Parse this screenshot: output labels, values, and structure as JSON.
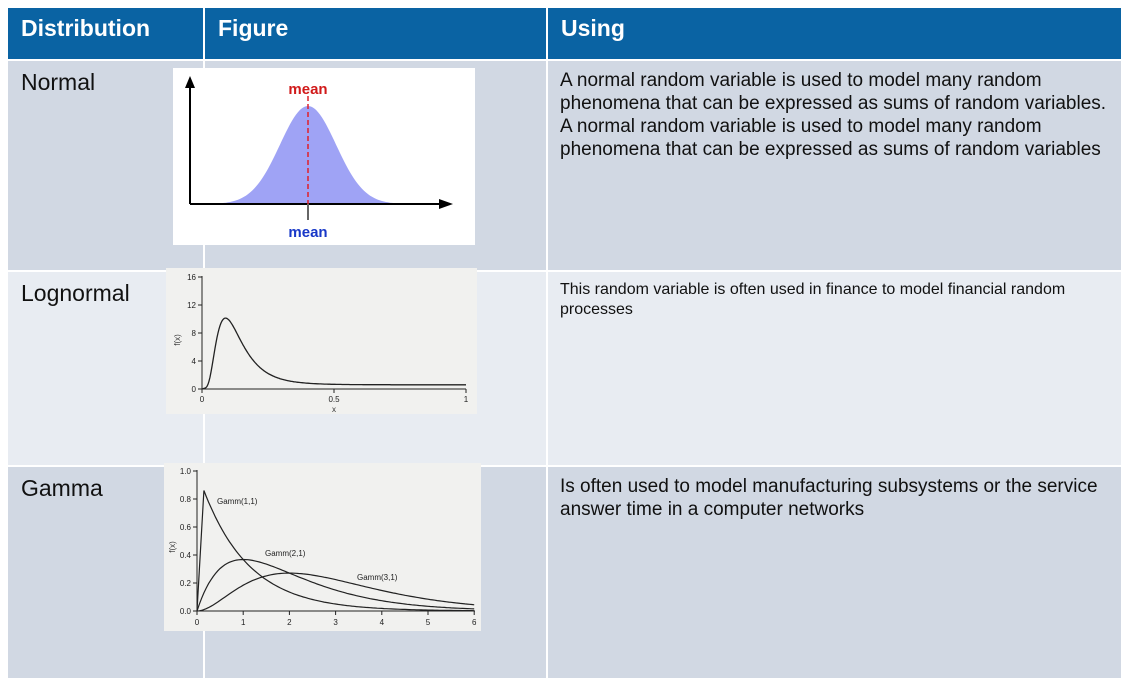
{
  "table": {
    "headers": [
      "Distribution",
      "Figure",
      "Using"
    ],
    "rows": [
      {
        "distribution": "Normal",
        "using": "A normal random variable is used to model many random phenomena that can be expressed as sums of random variables. A normal random variable is used to model many random phenomena that can be expressed as sums of random variables"
      },
      {
        "distribution": "Lognormal",
        "using": "This random variable is often used in finance to model financial random processes"
      },
      {
        "distribution": "Gamma",
        "using": "Is often used to model manufacturing subsystems or the service answer time in a computer networks"
      }
    ]
  },
  "figures": {
    "normal": {
      "top_label": "mean",
      "bottom_label": "mean",
      "fill_color": "#9fa3f5",
      "mean_line_color": "#e0202a",
      "top_label_color": "#d11a1a",
      "bottom_label_color": "#1838c8"
    },
    "lognormal": {
      "y_ticks": [
        "0",
        "4",
        "8",
        "12",
        "16"
      ],
      "x_ticks": [
        "0",
        "0.5",
        "1"
      ],
      "ylabel": "f(x)",
      "xlabel": "x"
    },
    "gamma": {
      "y_ticks": [
        "0.0",
        "0.2",
        "0.4",
        "0.6",
        "0.8",
        "1.0"
      ],
      "x_ticks": [
        "0",
        "1",
        "2",
        "3",
        "4",
        "5",
        "6"
      ],
      "ylabel": "f(x)",
      "curve_labels": [
        "Gamm(1,1)",
        "Gamm(2,1)",
        "Gamm(3,1)"
      ]
    }
  }
}
